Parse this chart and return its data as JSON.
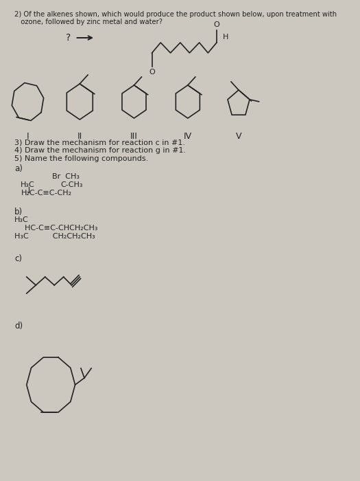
{
  "bg_color": "#ccc8c0",
  "text_color": "#222222",
  "title_line1": "2) Of the alkenes shown, which would produce the product shown below, upon treatment with",
  "title_line2": "   ozone, followed by zinc metal and water?",
  "q3": "3) Draw the mechanism for reaction c in #1.",
  "q4": "4) Draw the mechanism for reaction g in #1.",
  "q5": "5) Name the following compounds.",
  "roman_I": "I",
  "roman_II": "II",
  "roman_III": "III",
  "roman_IV": "IV",
  "roman_V": "V"
}
